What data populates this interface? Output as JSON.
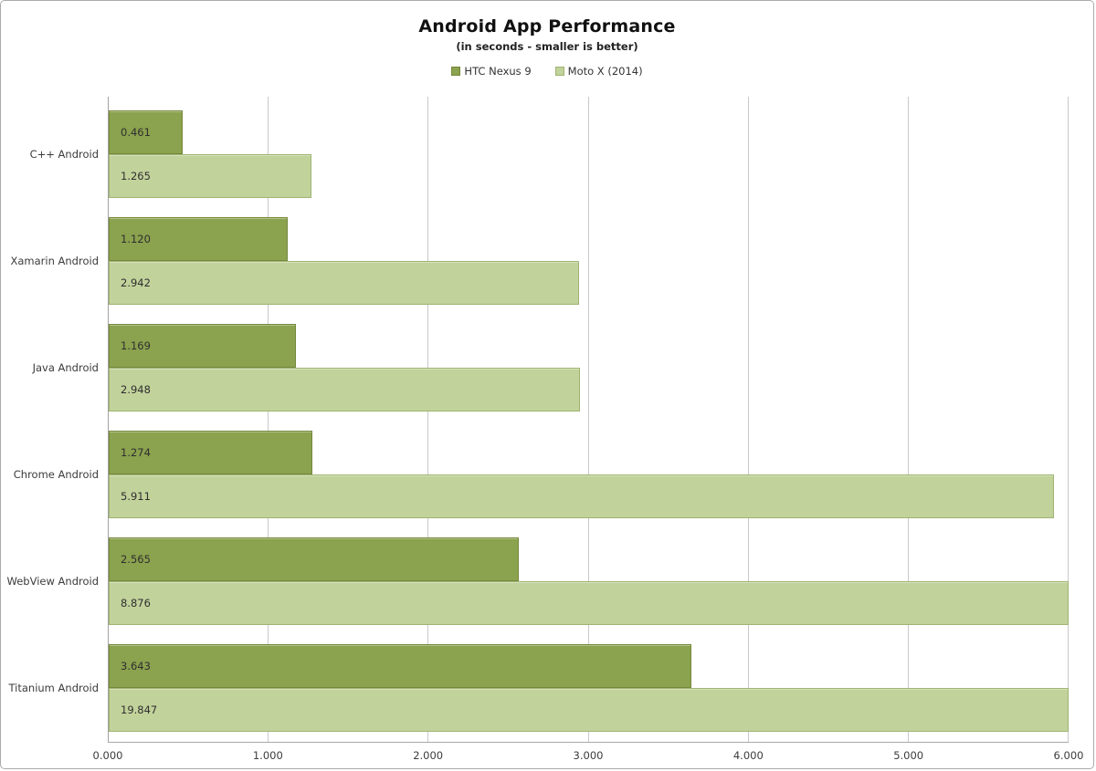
{
  "chart_data": {
    "type": "bar",
    "orientation": "horizontal",
    "title": "Android App Performance",
    "subtitle": "(in seconds - smaller is better)",
    "categories": [
      "C++ Android",
      "Xamarin Android",
      "Java Android",
      "Chrome Android",
      "WebView Android",
      "Titanium Android"
    ],
    "series": [
      {
        "name": "HTC Nexus 9",
        "fill": "#8ba24e",
        "border": "#75883c",
        "values": [
          0.461,
          1.12,
          1.169,
          1.274,
          2.565,
          3.643
        ]
      },
      {
        "name": "Moto X (2014)",
        "fill": "#c2d29b",
        "border": "#9fb472",
        "values": [
          1.265,
          2.942,
          2.948,
          5.911,
          8.876,
          19.847
        ]
      }
    ],
    "xlim": [
      0,
      6
    ],
    "x_ticks": [
      "0.000",
      "1.000",
      "2.000",
      "3.000",
      "4.000",
      "5.000",
      "6.000"
    ],
    "value_format_decimals": 3,
    "grid_color": "#c9c9c9",
    "axis_color": "#a6a6a6",
    "legend_position": "top",
    "grid": true
  }
}
